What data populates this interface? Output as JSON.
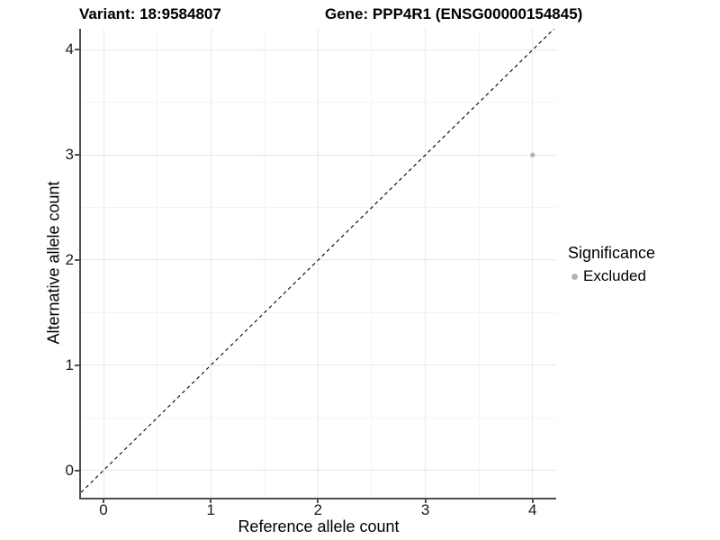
{
  "chart_data": {
    "type": "scatter",
    "title_left": "Variant: 18:9584807",
    "title_right": "Gene: PPP4R1 (ENSG00000154845)",
    "xlabel": "Reference allele count",
    "ylabel": "Alternative allele count",
    "x_ticks": [
      0,
      1,
      2,
      3,
      4
    ],
    "y_ticks": [
      0,
      1,
      2,
      3,
      4
    ],
    "xlim": [
      -0.21,
      4.22
    ],
    "ylim": [
      -0.26,
      4.2
    ],
    "grid": {
      "major": true,
      "minor": true,
      "minor_step": 0.5
    },
    "series": [
      {
        "name": "Excluded",
        "color": "#b4b4b4",
        "points": [
          {
            "x": 4,
            "y": 3
          }
        ]
      }
    ],
    "reference_line": {
      "type": "identity",
      "equation": "y = x",
      "style": "dashed",
      "color": "#000000"
    },
    "legend": {
      "title": "Significance",
      "position": "right",
      "items": [
        {
          "label": "Excluded",
          "color": "#b4b4b4"
        }
      ]
    }
  },
  "colors": {
    "background": "#ffffff",
    "axis_line": "#4f4f4f",
    "grid_major": "#e8e8e8",
    "grid_minor": "#f4f4f4",
    "tick_text": "#1a1a1a",
    "title_text": "#000000",
    "point": "#b4b4b4"
  }
}
